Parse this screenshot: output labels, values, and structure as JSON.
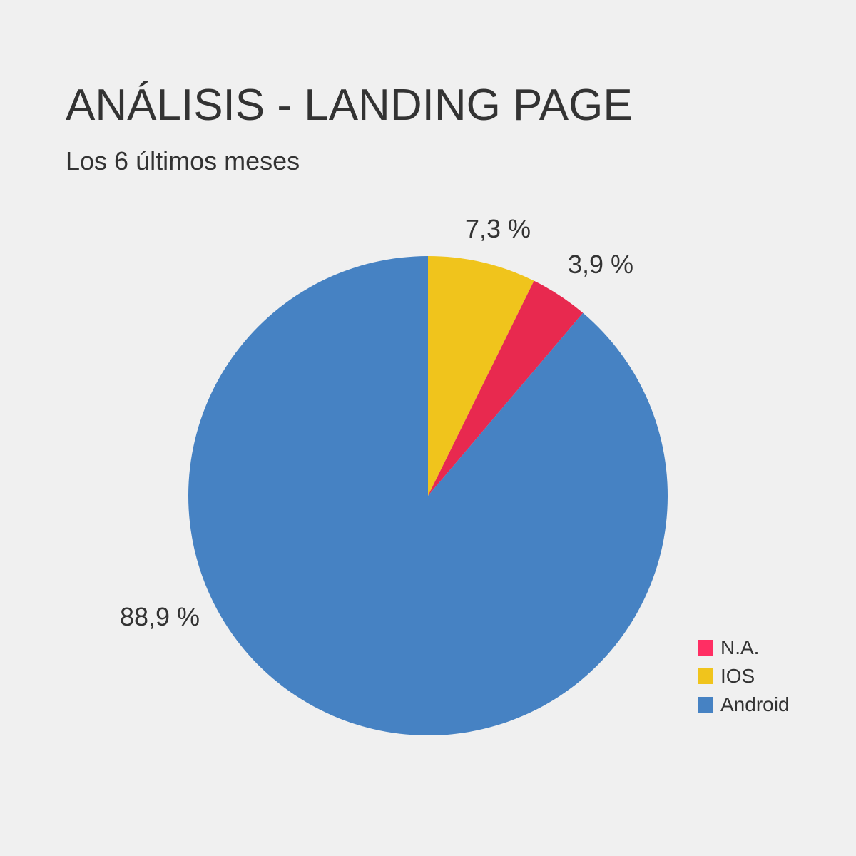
{
  "title": "ANÁLISIS - LANDING PAGE",
  "subtitle": "Los 6 últimos meses",
  "chart_data": {
    "type": "pie",
    "title": "ANÁLISIS - LANDING PAGE",
    "subtitle": "Los 6 últimos meses",
    "slices": [
      {
        "name": "IOS",
        "value": 7.3,
        "label": "7,3 %",
        "color": "#f0c41c"
      },
      {
        "name": "N.A.",
        "value": 3.9,
        "label": "3,9 %",
        "color": "#e8294f"
      },
      {
        "name": "Android",
        "value": 88.9,
        "label": "88,9 %",
        "color": "#4682c3"
      }
    ],
    "legend": {
      "placement": "bottom-right",
      "entries": [
        {
          "label": "N.A.",
          "color": "#ff2e63"
        },
        {
          "label": "IOS",
          "color": "#f0c41c"
        },
        {
          "label": "Android",
          "color": "#4682c3"
        }
      ]
    }
  }
}
